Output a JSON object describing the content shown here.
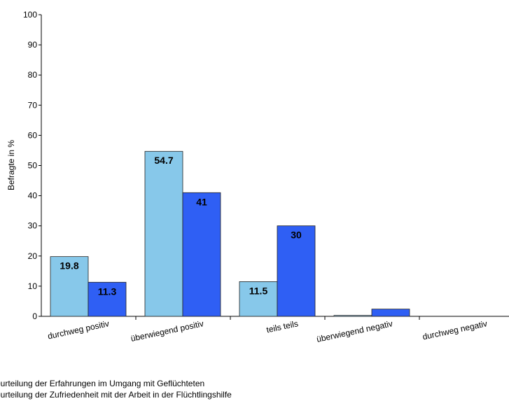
{
  "chart_data": {
    "type": "bar",
    "ylabel": "Befragte in %",
    "xlabel": "",
    "ylim": [
      0,
      100
    ],
    "yticks": [
      0,
      10,
      20,
      30,
      40,
      50,
      60,
      70,
      80,
      90,
      100
    ],
    "categories": [
      "durchweg positiv",
      "überwiegend positiv",
      "teils teils",
      "überwiegend negativ",
      "durchweg negativ"
    ],
    "series": [
      {
        "name": "eurteilung der Erfahrungen im Umgang mit Geflüchteten",
        "color": "#87c8ea",
        "values": [
          19.8,
          54.7,
          11.5,
          0.3,
          0
        ],
        "labels": [
          "19.8",
          "54.7",
          "11.5",
          "",
          ""
        ]
      },
      {
        "name": "eurteilung der Zufriedenheit mit der Arbeit in der Flüchtlingshilfe",
        "color": "#2f5ff4",
        "values": [
          11.3,
          41,
          30,
          2.4,
          0
        ],
        "labels": [
          "11.3",
          "41",
          "30",
          "",
          ""
        ]
      }
    ],
    "legend": "bottom-left",
    "grid": false
  }
}
